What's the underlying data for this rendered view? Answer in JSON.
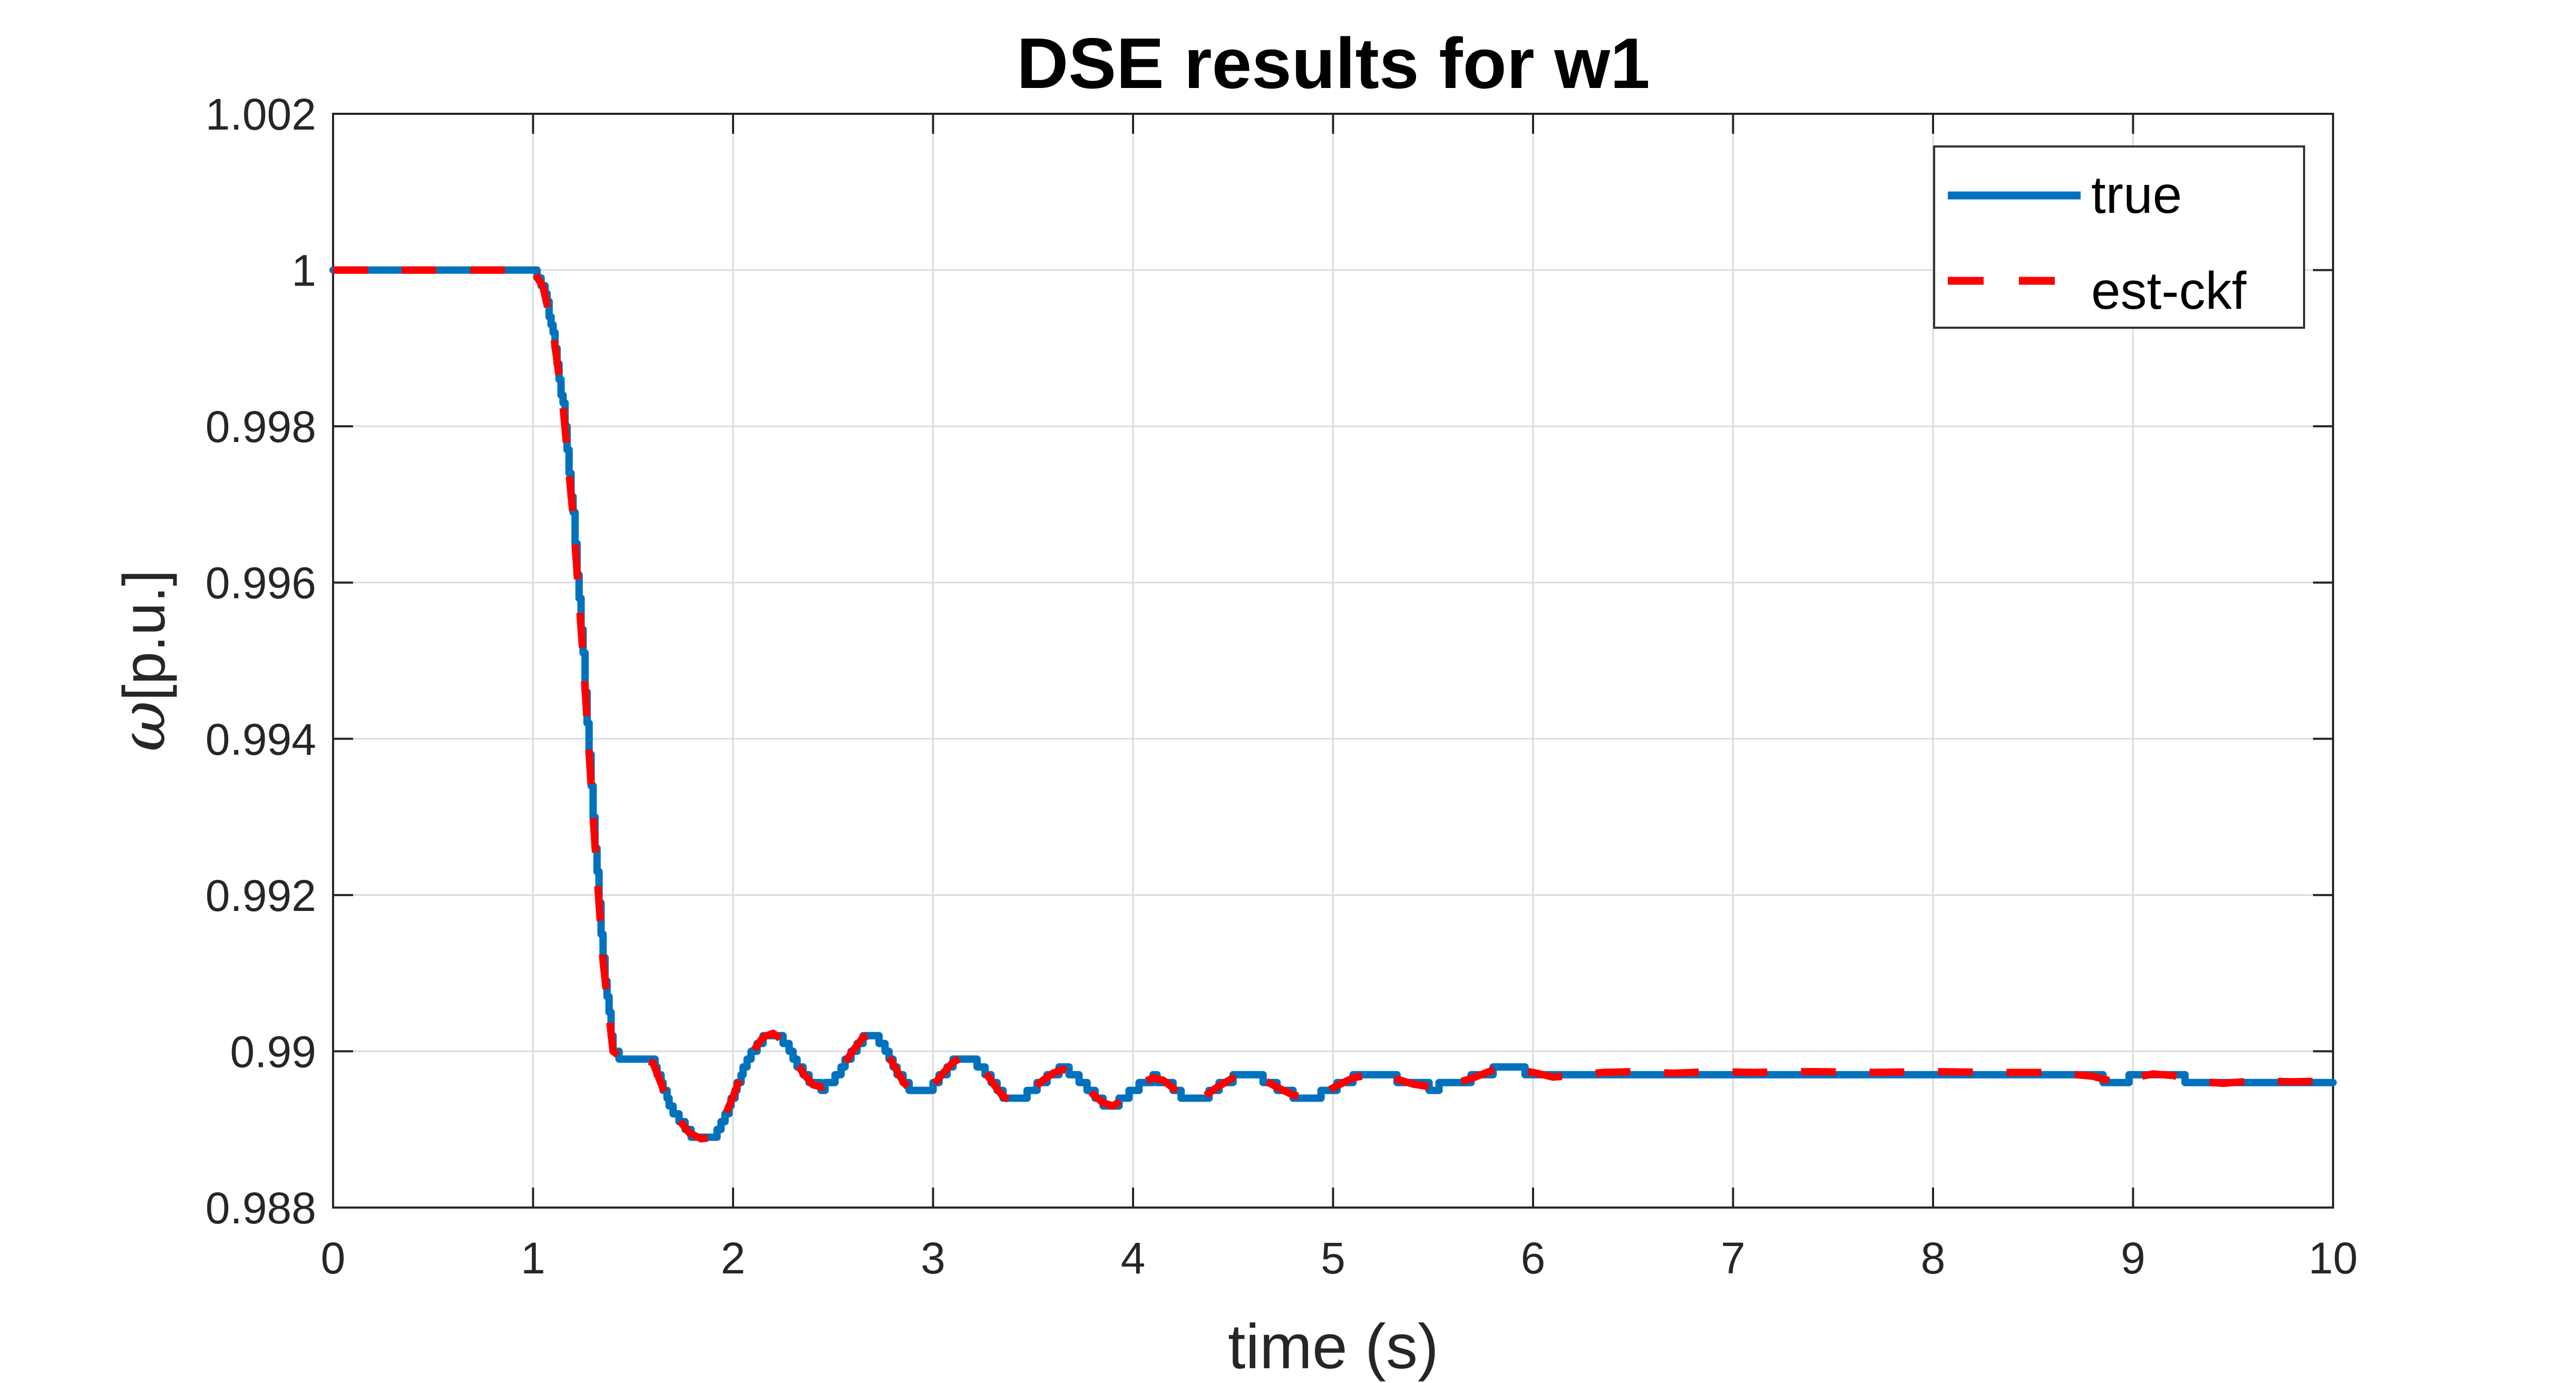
{
  "style": {
    "background": "#ffffff",
    "axis_color": "#262626",
    "grid_color": "#dbdbdb",
    "title_color": "#000000",
    "legend_border_color": "#333333",
    "true_color": "#0072BD",
    "est_color": "#ff0000"
  },
  "labels": {
    "ylabel_symbol": "ω",
    "ylabel_unit": "[p.u.]"
  },
  "axes": {
    "x_tick_labels": [
      "0",
      "1",
      "2",
      "3",
      "4",
      "5",
      "6",
      "7",
      "8",
      "9",
      "10"
    ],
    "y_tick_labels": [
      "1.002",
      "1",
      "0.998",
      "0.996",
      "0.994",
      "0.992",
      "0.99",
      "0.988"
    ]
  },
  "chart_data": {
    "type": "line",
    "title": "DSE results for w1",
    "xlabel": "time (s)",
    "ylabel": "ω[p.u.]",
    "xlim": [
      0,
      10
    ],
    "ylim": [
      0.988,
      1.002
    ],
    "x_ticks": [
      0,
      1,
      2,
      3,
      4,
      5,
      6,
      7,
      8,
      9,
      10
    ],
    "y_ticks": [
      1.002,
      1.0,
      0.998,
      0.996,
      0.994,
      0.992,
      0.99,
      0.988
    ],
    "grid": true,
    "legend_position": "top-right",
    "series": [
      {
        "name": "true",
        "color": "#0072BD",
        "style": "solid",
        "line_width": 14,
        "render": "staircase-quantized-1e-4"
      },
      {
        "name": "est-ckf",
        "color": "#ff0000",
        "style": "dashed",
        "dash": [
          66,
          64
        ],
        "line_width": 14,
        "render": "smooth"
      }
    ],
    "points": [
      [
        0.0,
        1.0
      ],
      [
        0.2,
        1.0
      ],
      [
        0.4,
        1.0
      ],
      [
        0.6,
        1.0
      ],
      [
        0.8,
        1.0
      ],
      [
        1.0,
        1.0
      ],
      [
        1.05,
        0.99978
      ],
      [
        1.1,
        0.99922
      ],
      [
        1.15,
        0.99825
      ],
      [
        1.2,
        0.99685
      ],
      [
        1.25,
        0.99505
      ],
      [
        1.3,
        0.993
      ],
      [
        1.35,
        0.99115
      ],
      [
        1.4,
        0.99
      ],
      [
        1.45,
        0.9899
      ],
      [
        1.5,
        0.9899
      ],
      [
        1.55,
        0.98991
      ],
      [
        1.6,
        0.98985
      ],
      [
        1.65,
        0.98952
      ],
      [
        1.7,
        0.98922
      ],
      [
        1.78,
        0.98896
      ],
      [
        1.84,
        0.98888
      ],
      [
        1.9,
        0.9889
      ],
      [
        1.95,
        0.98912
      ],
      [
        2.0,
        0.98942
      ],
      [
        2.05,
        0.98976
      ],
      [
        2.1,
        0.99
      ],
      [
        2.15,
        0.99018
      ],
      [
        2.2,
        0.99023
      ],
      [
        2.26,
        0.99012
      ],
      [
        2.3,
        0.98993
      ],
      [
        2.35,
        0.98972
      ],
      [
        2.4,
        0.98957
      ],
      [
        2.45,
        0.98954
      ],
      [
        2.5,
        0.98963
      ],
      [
        2.55,
        0.98982
      ],
      [
        2.6,
        0.99001
      ],
      [
        2.65,
        0.99018
      ],
      [
        2.7,
        0.99021
      ],
      [
        2.75,
        0.99007
      ],
      [
        2.8,
        0.98984
      ],
      [
        2.85,
        0.98961
      ],
      [
        2.9,
        0.98947
      ],
      [
        2.95,
        0.98946
      ],
      [
        3.0,
        0.98956
      ],
      [
        3.05,
        0.98972
      ],
      [
        3.1,
        0.98986
      ],
      [
        3.15,
        0.98993
      ],
      [
        3.2,
        0.98989
      ],
      [
        3.25,
        0.98977
      ],
      [
        3.3,
        0.98959
      ],
      [
        3.35,
        0.98942
      ],
      [
        3.4,
        0.98936
      ],
      [
        3.45,
        0.98941
      ],
      [
        3.5,
        0.98952
      ],
      [
        3.55,
        0.98963
      ],
      [
        3.6,
        0.98972
      ],
      [
        3.65,
        0.98977
      ],
      [
        3.7,
        0.98972
      ],
      [
        3.75,
        0.98959
      ],
      [
        3.8,
        0.98945
      ],
      [
        3.85,
        0.98934
      ],
      [
        3.9,
        0.9893
      ],
      [
        3.95,
        0.98939
      ],
      [
        4.0,
        0.9895
      ],
      [
        4.05,
        0.9896
      ],
      [
        4.1,
        0.98966
      ],
      [
        4.15,
        0.98963
      ],
      [
        4.2,
        0.98953
      ],
      [
        4.25,
        0.98941
      ],
      [
        4.3,
        0.98936
      ],
      [
        4.35,
        0.98941
      ],
      [
        4.42,
        0.98954
      ],
      [
        4.5,
        0.98966
      ],
      [
        4.58,
        0.98971
      ],
      [
        4.65,
        0.98964
      ],
      [
        4.72,
        0.98954
      ],
      [
        4.8,
        0.98944
      ],
      [
        4.88,
        0.9894
      ],
      [
        4.95,
        0.98946
      ],
      [
        5.02,
        0.98956
      ],
      [
        5.1,
        0.98966
      ],
      [
        5.2,
        0.98971
      ],
      [
        5.3,
        0.98966
      ],
      [
        5.4,
        0.98958
      ],
      [
        5.5,
        0.98954
      ],
      [
        5.6,
        0.98958
      ],
      [
        5.7,
        0.98966
      ],
      [
        5.8,
        0.98976
      ],
      [
        5.9,
        0.98977
      ],
      [
        6.0,
        0.98973
      ],
      [
        6.1,
        0.98967
      ],
      [
        6.2,
        0.98969
      ],
      [
        6.35,
        0.98973
      ],
      [
        6.5,
        0.98974
      ],
      [
        6.7,
        0.98972
      ],
      [
        6.9,
        0.98974
      ],
      [
        7.1,
        0.98973
      ],
      [
        7.4,
        0.98974
      ],
      [
        7.7,
        0.98973
      ],
      [
        8.0,
        0.98974
      ],
      [
        8.3,
        0.98973
      ],
      [
        8.6,
        0.98973
      ],
      [
        8.8,
        0.98968
      ],
      [
        8.9,
        0.98961
      ],
      [
        9.0,
        0.98966
      ],
      [
        9.1,
        0.98971
      ],
      [
        9.2,
        0.98969
      ],
      [
        9.3,
        0.98962
      ],
      [
        9.45,
        0.98959
      ],
      [
        9.6,
        0.98962
      ],
      [
        9.8,
        0.98961
      ],
      [
        10.0,
        0.98962
      ]
    ]
  }
}
